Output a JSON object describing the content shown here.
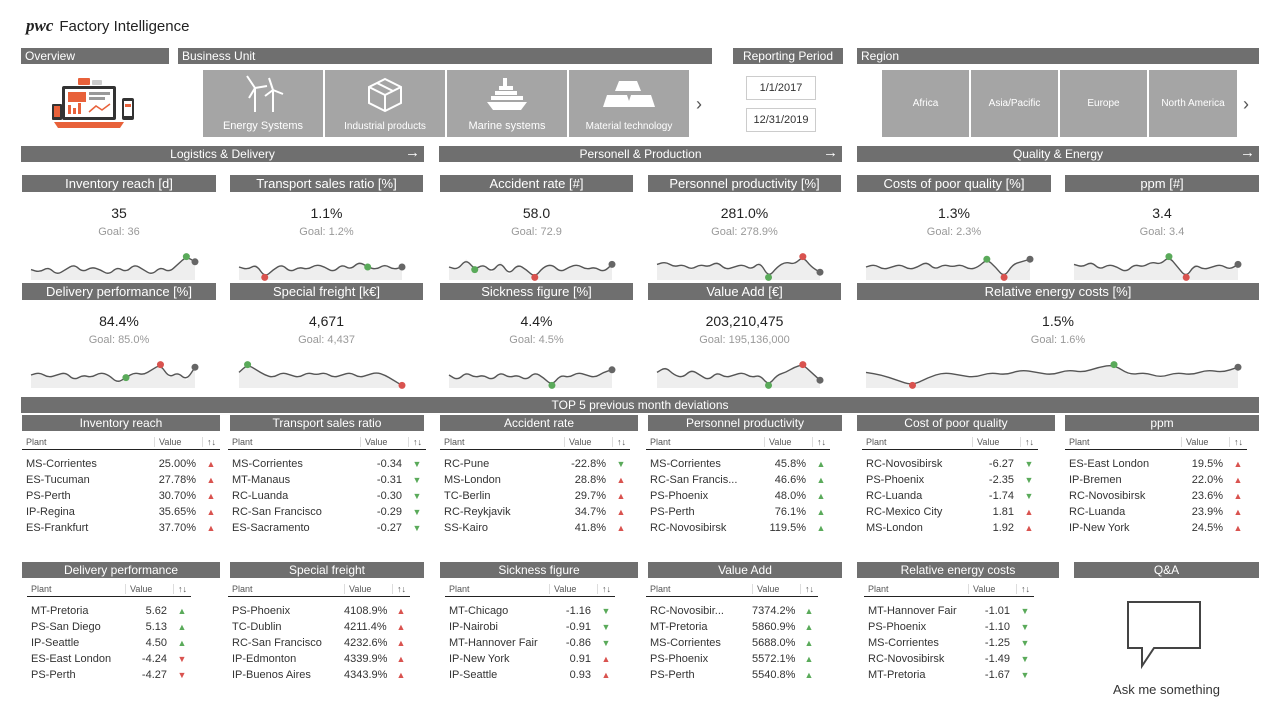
{
  "header": {
    "brand": "pwc",
    "title": "Factory Intelligence"
  },
  "filters": {
    "overview_label": "Overview",
    "business_unit_label": "Business Unit",
    "business_units": [
      "Energy Systems",
      "Industrial products",
      "Marine systems",
      "Material technology"
    ],
    "reporting_period_label": "Reporting Period",
    "date_from": "1/1/2017",
    "date_to": "12/31/2019",
    "region_label": "Region",
    "regions": [
      "Africa",
      "Asia/Pacific",
      "Europe",
      "North America"
    ]
  },
  "sections": {
    "logistics": "Logistics & Delivery",
    "personnel": "Personell & Production",
    "quality": "Quality & Energy"
  },
  "kpis": [
    {
      "title": "Inventory reach [d]",
      "value": "35",
      "goal": "Goal: 36"
    },
    {
      "title": "Transport sales ratio [%]",
      "value": "1.1%",
      "goal": "Goal: 1.2%"
    },
    {
      "title": "Accident rate [#]",
      "value": "58.0",
      "goal": "Goal: 72.9"
    },
    {
      "title": "Personnel productivity [%]",
      "value": "281.0%",
      "goal": "Goal: 278.9%"
    },
    {
      "title": "Costs of poor quality [%]",
      "value": "1.3%",
      "goal": "Goal: 2.3%"
    },
    {
      "title": "ppm [#]",
      "value": "3.4",
      "goal": "Goal: 3.4"
    },
    {
      "title": "Delivery performance [%]",
      "value": "84.4%",
      "goal": "Goal: 85.0%"
    },
    {
      "title": "Special freight [k€]",
      "value": "4,671",
      "goal": "Goal: 4,437"
    },
    {
      "title": "Sickness figure [%]",
      "value": "4.4%",
      "goal": "Goal: 4.5%"
    },
    {
      "title": "Value Add [€]",
      "value": "203,210,475",
      "goal": "Goal: 195,136,000"
    },
    {
      "title": "Relative energy costs [%]",
      "value": "1.5%",
      "goal": "Goal: 1.6%"
    }
  ],
  "top5_title": "TOP 5 previous month deviations",
  "table_headers": {
    "plant": "Plant",
    "value": "Value",
    "sort": "↑↓"
  },
  "tables": [
    {
      "title": "Inventory reach",
      "rows": [
        {
          "plant": "MS-Corrientes",
          "value": "25.00%",
          "ind": "up-red"
        },
        {
          "plant": "ES-Tucuman",
          "value": "27.78%",
          "ind": "up-red"
        },
        {
          "plant": "PS-Perth",
          "value": "30.70%",
          "ind": "up-red"
        },
        {
          "plant": "IP-Regina",
          "value": "35.65%",
          "ind": "up-red"
        },
        {
          "plant": "ES-Frankfurt",
          "value": "37.70%",
          "ind": "up-red"
        }
      ]
    },
    {
      "title": "Transport sales ratio",
      "rows": [
        {
          "plant": "MS-Corrientes",
          "value": "-0.34",
          "ind": "down-green"
        },
        {
          "plant": "MT-Manaus",
          "value": "-0.31",
          "ind": "down-green"
        },
        {
          "plant": "RC-Luanda",
          "value": "-0.30",
          "ind": "down-green"
        },
        {
          "plant": "RC-San Francisco",
          "value": "-0.29",
          "ind": "down-green"
        },
        {
          "plant": "ES-Sacramento",
          "value": "-0.27",
          "ind": "down-green"
        }
      ]
    },
    {
      "title": "Accident rate",
      "rows": [
        {
          "plant": "RC-Pune",
          "value": "-22.8%",
          "ind": "down-green"
        },
        {
          "plant": "MS-London",
          "value": "28.8%",
          "ind": "up-red"
        },
        {
          "plant": "TC-Berlin",
          "value": "29.7%",
          "ind": "up-red"
        },
        {
          "plant": "RC-Reykjavik",
          "value": "34.7%",
          "ind": "up-red"
        },
        {
          "plant": "SS-Kairo",
          "value": "41.8%",
          "ind": "up-red"
        }
      ]
    },
    {
      "title": "Personnel productivity",
      "rows": [
        {
          "plant": "MS-Corrientes",
          "value": "45.8%",
          "ind": "up-green"
        },
        {
          "plant": "RC-San Francis...",
          "value": "46.6%",
          "ind": "up-green"
        },
        {
          "plant": "PS-Phoenix",
          "value": "48.0%",
          "ind": "up-green"
        },
        {
          "plant": "PS-Perth",
          "value": "76.1%",
          "ind": "up-green"
        },
        {
          "plant": "RC-Novosibirsk",
          "value": "119.5%",
          "ind": "up-green"
        }
      ]
    },
    {
      "title": "Cost of poor quality",
      "rows": [
        {
          "plant": "RC-Novosibirsk",
          "value": "-6.27",
          "ind": "down-green"
        },
        {
          "plant": "PS-Phoenix",
          "value": "-2.35",
          "ind": "down-green"
        },
        {
          "plant": "RC-Luanda",
          "value": "-1.74",
          "ind": "down-green"
        },
        {
          "plant": "RC-Mexico City",
          "value": "1.81",
          "ind": "up-red"
        },
        {
          "plant": "MS-London",
          "value": "1.92",
          "ind": "up-red"
        }
      ]
    },
    {
      "title": "ppm",
      "rows": [
        {
          "plant": "ES-East London",
          "value": "19.5%",
          "ind": "up-red"
        },
        {
          "plant": "IP-Bremen",
          "value": "22.0%",
          "ind": "up-red"
        },
        {
          "plant": "RC-Novosibirsk",
          "value": "23.6%",
          "ind": "up-red"
        },
        {
          "plant": "RC-Luanda",
          "value": "23.9%",
          "ind": "up-red"
        },
        {
          "plant": "IP-New York",
          "value": "24.5%",
          "ind": "up-red"
        }
      ]
    },
    {
      "title": "Delivery performance",
      "rows": [
        {
          "plant": "MT-Pretoria",
          "value": "5.62",
          "ind": "up-green"
        },
        {
          "plant": "PS-San Diego",
          "value": "5.13",
          "ind": "up-green"
        },
        {
          "plant": "IP-Seattle",
          "value": "4.50",
          "ind": "up-green"
        },
        {
          "plant": "ES-East London",
          "value": "-4.24",
          "ind": "down-red"
        },
        {
          "plant": "PS-Perth",
          "value": "-4.27",
          "ind": "down-red"
        }
      ]
    },
    {
      "title": "Special freight",
      "rows": [
        {
          "plant": "PS-Phoenix",
          "value": "4108.9%",
          "ind": "up-red"
        },
        {
          "plant": "TC-Dublin",
          "value": "4211.4%",
          "ind": "up-red"
        },
        {
          "plant": "RC-San Francisco",
          "value": "4232.6%",
          "ind": "up-red"
        },
        {
          "plant": "IP-Edmonton",
          "value": "4339.9%",
          "ind": "up-red"
        },
        {
          "plant": "IP-Buenos Aires",
          "value": "4343.9%",
          "ind": "up-red"
        }
      ]
    },
    {
      "title": "Sickness figure",
      "rows": [
        {
          "plant": "MT-Chicago",
          "value": "-1.16",
          "ind": "down-green"
        },
        {
          "plant": "IP-Nairobi",
          "value": "-0.91",
          "ind": "down-green"
        },
        {
          "plant": "MT-Hannover Fair",
          "value": "-0.86",
          "ind": "down-green"
        },
        {
          "plant": "IP-New York",
          "value": "0.91",
          "ind": "up-red"
        },
        {
          "plant": "IP-Seattle",
          "value": "0.93",
          "ind": "up-red"
        }
      ]
    },
    {
      "title": "Value Add",
      "rows": [
        {
          "plant": "RC-Novosibir...",
          "value": "7374.2%",
          "ind": "up-green"
        },
        {
          "plant": "MT-Pretoria",
          "value": "5860.9%",
          "ind": "up-green"
        },
        {
          "plant": "MS-Corrientes",
          "value": "5688.0%",
          "ind": "up-green"
        },
        {
          "plant": "PS-Phoenix",
          "value": "5572.1%",
          "ind": "up-green"
        },
        {
          "plant": "PS-Perth",
          "value": "5540.8%",
          "ind": "up-green"
        }
      ]
    },
    {
      "title": "Relative energy costs",
      "rows": [
        {
          "plant": "MT-Hannover Fair",
          "value": "-1.01",
          "ind": "down-green"
        },
        {
          "plant": "PS-Phoenix",
          "value": "-1.10",
          "ind": "down-green"
        },
        {
          "plant": "MS-Corrientes",
          "value": "-1.25",
          "ind": "down-green"
        },
        {
          "plant": "RC-Novosibirsk",
          "value": "-1.49",
          "ind": "down-green"
        },
        {
          "plant": "MT-Pretoria",
          "value": "-1.67",
          "ind": "down-green"
        }
      ]
    }
  ],
  "qa": {
    "title": "Q&A",
    "label": "Ask me something"
  },
  "colors": {
    "bar": "#6f6f6f",
    "tile": "#a5a5a5",
    "positive": "#5aaa5a",
    "negative": "#d9534f"
  }
}
